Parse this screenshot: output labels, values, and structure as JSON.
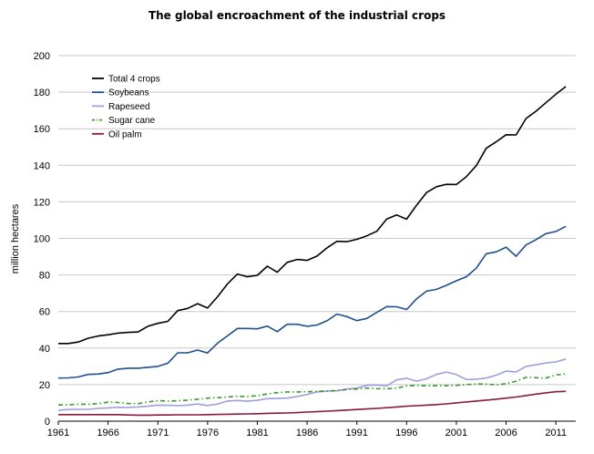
{
  "chart_data": {
    "type": "line",
    "title": "The global encroachment of the industrial crops",
    "xlabel": "",
    "ylabel": "million hectares",
    "ylim": [
      0,
      200
    ],
    "xlim": [
      1961,
      2013
    ],
    "y_ticks": [
      0,
      20,
      40,
      60,
      80,
      100,
      120,
      140,
      160,
      180,
      200
    ],
    "x_ticks": [
      1961,
      1966,
      1971,
      1976,
      1981,
      1986,
      1991,
      1996,
      2001,
      2006,
      2011
    ],
    "grid": true,
    "legend": "top-left",
    "x": [
      1961,
      1962,
      1963,
      1964,
      1965,
      1966,
      1967,
      1968,
      1969,
      1970,
      1971,
      1972,
      1973,
      1974,
      1975,
      1976,
      1977,
      1978,
      1979,
      1980,
      1981,
      1982,
      1983,
      1984,
      1985,
      1986,
      1987,
      1988,
      1989,
      1990,
      1991,
      1992,
      1993,
      1994,
      1995,
      1996,
      1997,
      1998,
      1999,
      2000,
      2001,
      2002,
      2003,
      2004,
      2005,
      2006,
      2007,
      2008,
      2009,
      2010,
      2011,
      2012
    ],
    "series": [
      {
        "name": "Total 4 crops",
        "color": "#000000",
        "dash": "",
        "values": [
          42.5,
          42.5,
          43.3,
          45.4,
          46.6,
          47.3,
          48.2,
          48.6,
          48.8,
          51.9,
          53.5,
          54.6,
          60.5,
          61.7,
          64.3,
          61.9,
          68.1,
          75.1,
          80.5,
          79.0,
          79.8,
          84.8,
          81.5,
          86.9,
          88.5,
          88.0,
          90.3,
          94.8,
          98.4,
          98.2,
          99.5,
          101.4,
          103.9,
          110.6,
          112.8,
          110.5,
          118.1,
          125.1,
          128.3,
          129.6,
          129.5,
          133.7,
          139.8,
          149.3,
          152.8,
          156.7,
          156.6,
          165.6,
          169.6,
          174.2,
          178.9,
          183.1
        ]
      },
      {
        "name": "Soybeans",
        "color": "#1f4e8c",
        "dash": "",
        "values": [
          23.6,
          23.7,
          24.2,
          25.6,
          25.8,
          26.6,
          28.5,
          29.0,
          29.0,
          29.5,
          30.0,
          31.7,
          37.4,
          37.4,
          38.9,
          37.3,
          42.7,
          46.7,
          50.7,
          50.7,
          50.5,
          52.0,
          49.0,
          53.0,
          53.0,
          51.9,
          52.6,
          54.9,
          58.6,
          57.2,
          55.0,
          56.2,
          59.5,
          62.7,
          62.6,
          61.1,
          66.9,
          71.1,
          72.1,
          74.3,
          76.8,
          79.0,
          83.7,
          91.6,
          92.6,
          95.2,
          90.2,
          96.4,
          99.3,
          102.6,
          103.8,
          106.6
        ]
      },
      {
        "name": "Rapeseed",
        "color": "#9e9ee0",
        "dash": "",
        "values": [
          6.0,
          6.4,
          6.5,
          6.5,
          7.0,
          7.3,
          7.6,
          7.5,
          7.8,
          8.2,
          8.8,
          8.7,
          8.5,
          8.8,
          9.4,
          8.6,
          9.4,
          11.0,
          11.3,
          10.9,
          11.4,
          12.3,
          12.4,
          12.6,
          13.5,
          14.6,
          16.0,
          16.4,
          16.6,
          17.6,
          18.1,
          19.6,
          19.8,
          19.3,
          22.6,
          23.5,
          21.9,
          23.2,
          25.6,
          26.9,
          25.5,
          22.8,
          23.0,
          23.6,
          25.2,
          27.4,
          27.0,
          30.0,
          30.8,
          31.8,
          32.4,
          34.0
        ]
      },
      {
        "name": "Sugar cane",
        "color": "#3a9a2a",
        "dash": "5,3,1.5,3",
        "values": [
          8.9,
          9.0,
          9.3,
          9.3,
          9.6,
          10.4,
          10.2,
          9.7,
          9.6,
          10.5,
          11.2,
          11.0,
          11.1,
          11.5,
          12.0,
          12.6,
          12.8,
          13.2,
          13.6,
          13.5,
          13.9,
          14.9,
          15.6,
          16.0,
          16.0,
          16.1,
          16.3,
          16.5,
          16.8,
          17.3,
          17.6,
          18.1,
          17.8,
          17.7,
          18.1,
          19.3,
          19.5,
          19.3,
          19.4,
          19.4,
          19.6,
          20.0,
          20.4,
          20.3,
          19.9,
          20.5,
          21.9,
          24.0,
          23.8,
          23.6,
          25.3,
          25.9
        ]
      },
      {
        "name": "Oil palm",
        "color": "#8b1a3c",
        "dash": "",
        "values": [
          3.6,
          3.6,
          3.6,
          3.6,
          3.6,
          3.6,
          3.6,
          3.4,
          3.3,
          3.3,
          3.4,
          3.4,
          3.5,
          3.5,
          3.5,
          3.6,
          3.7,
          3.8,
          3.9,
          4.0,
          4.1,
          4.3,
          4.4,
          4.5,
          4.7,
          5.0,
          5.2,
          5.5,
          5.8,
          6.1,
          6.4,
          6.7,
          7.0,
          7.4,
          7.8,
          8.2,
          8.5,
          8.8,
          9.1,
          9.5,
          10.0,
          10.5,
          11.0,
          11.5,
          12.0,
          12.6,
          13.2,
          14.0,
          14.8,
          15.5,
          16.1,
          16.3
        ]
      }
    ]
  }
}
